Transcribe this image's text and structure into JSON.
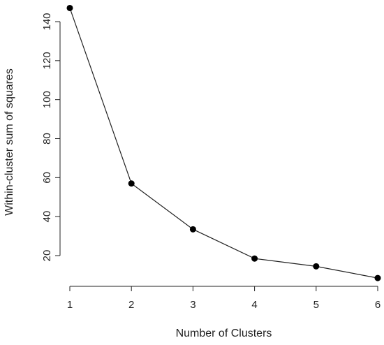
{
  "chart_data": {
    "type": "line",
    "title": "",
    "xlabel": "Number of Clusters",
    "ylabel": "Within-cluster sum of squares",
    "x": [
      1,
      2,
      3,
      4,
      5,
      6
    ],
    "series": [
      {
        "values": [
          147,
          57,
          33.5,
          18.5,
          14.5,
          8.5
        ]
      }
    ],
    "xticks": [
      "1",
      "2",
      "3",
      "4",
      "5",
      "6"
    ],
    "yticks": [
      "20",
      "40",
      "60",
      "80",
      "100",
      "120",
      "140"
    ],
    "xlim": [
      1,
      6
    ],
    "ylim": [
      20,
      140
    ],
    "grid": false,
    "marker": "filled-circle",
    "line_color": "#222222",
    "marker_color": "#000000"
  }
}
